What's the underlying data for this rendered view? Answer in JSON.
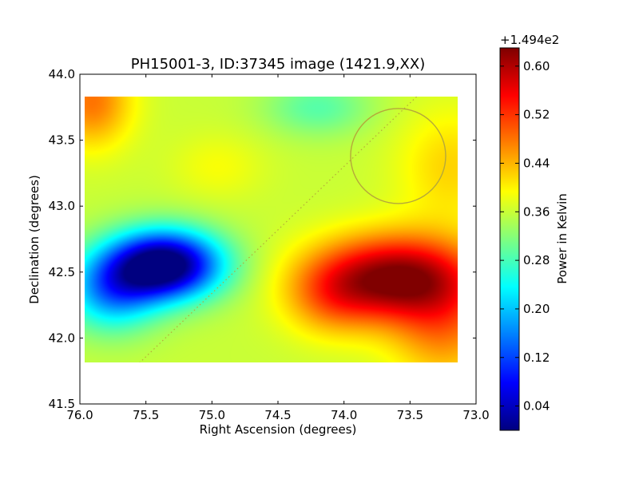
{
  "chart_data": {
    "type": "heatmap",
    "title": "PH15001-3, ID:37345 image (1421.9,XX)",
    "xlabel": "Right Ascension (degrees)",
    "ylabel": "Declination (degrees)",
    "xlim": [
      76.0,
      73.0
    ],
    "ylim": [
      41.5,
      44.0
    ],
    "x_ticks": [
      "76.0",
      "75.5",
      "75.0",
      "74.5",
      "74.0",
      "73.5",
      "73.0"
    ],
    "y_ticks": [
      "41.5",
      "42.0",
      "42.5",
      "43.0",
      "43.5",
      "44.0"
    ],
    "data_extent": {
      "ra": [
        75.95,
        73.15
      ],
      "dec": [
        41.81,
        43.83
      ]
    },
    "colorbar": {
      "label": "Power in Kelvin",
      "offset_text": "+1.494e2",
      "ticks": [
        "0.04",
        "0.12",
        "0.20",
        "0.28",
        "0.36",
        "0.44",
        "0.52",
        "0.60"
      ],
      "range": [
        0.0,
        0.63
      ],
      "colormap": "jet"
    },
    "features": [
      {
        "name": "cold-region",
        "ra": 75.35,
        "dec": 42.55,
        "value": 0.02
      },
      {
        "name": "hot-region",
        "ra": 73.6,
        "dec": 42.5,
        "value": 0.62
      },
      {
        "name": "warm-top-left",
        "ra": 75.9,
        "dec": 43.8,
        "value": 0.47
      },
      {
        "name": "green-top-center",
        "ra": 74.2,
        "dec": 43.75,
        "value": 0.3
      },
      {
        "name": "hot-bottom-right",
        "ra": 73.3,
        "dec": 42.0,
        "value": 0.58
      }
    ],
    "overlays": {
      "circle": {
        "center_ra": 73.59,
        "center_dec": 43.38,
        "radius_deg": 0.36,
        "color": "#b5a83a"
      },
      "dotted_line": {
        "from": [
          75.55,
          41.81
        ],
        "to": [
          73.45,
          43.83
        ],
        "color": "#b5a83a"
      }
    }
  },
  "colors": {
    "jet": [
      "#00007f",
      "#0000ff",
      "#007fff",
      "#00ffff",
      "#7fff7f",
      "#ffff00",
      "#ff7f00",
      "#ff0000",
      "#7f0000"
    ]
  }
}
